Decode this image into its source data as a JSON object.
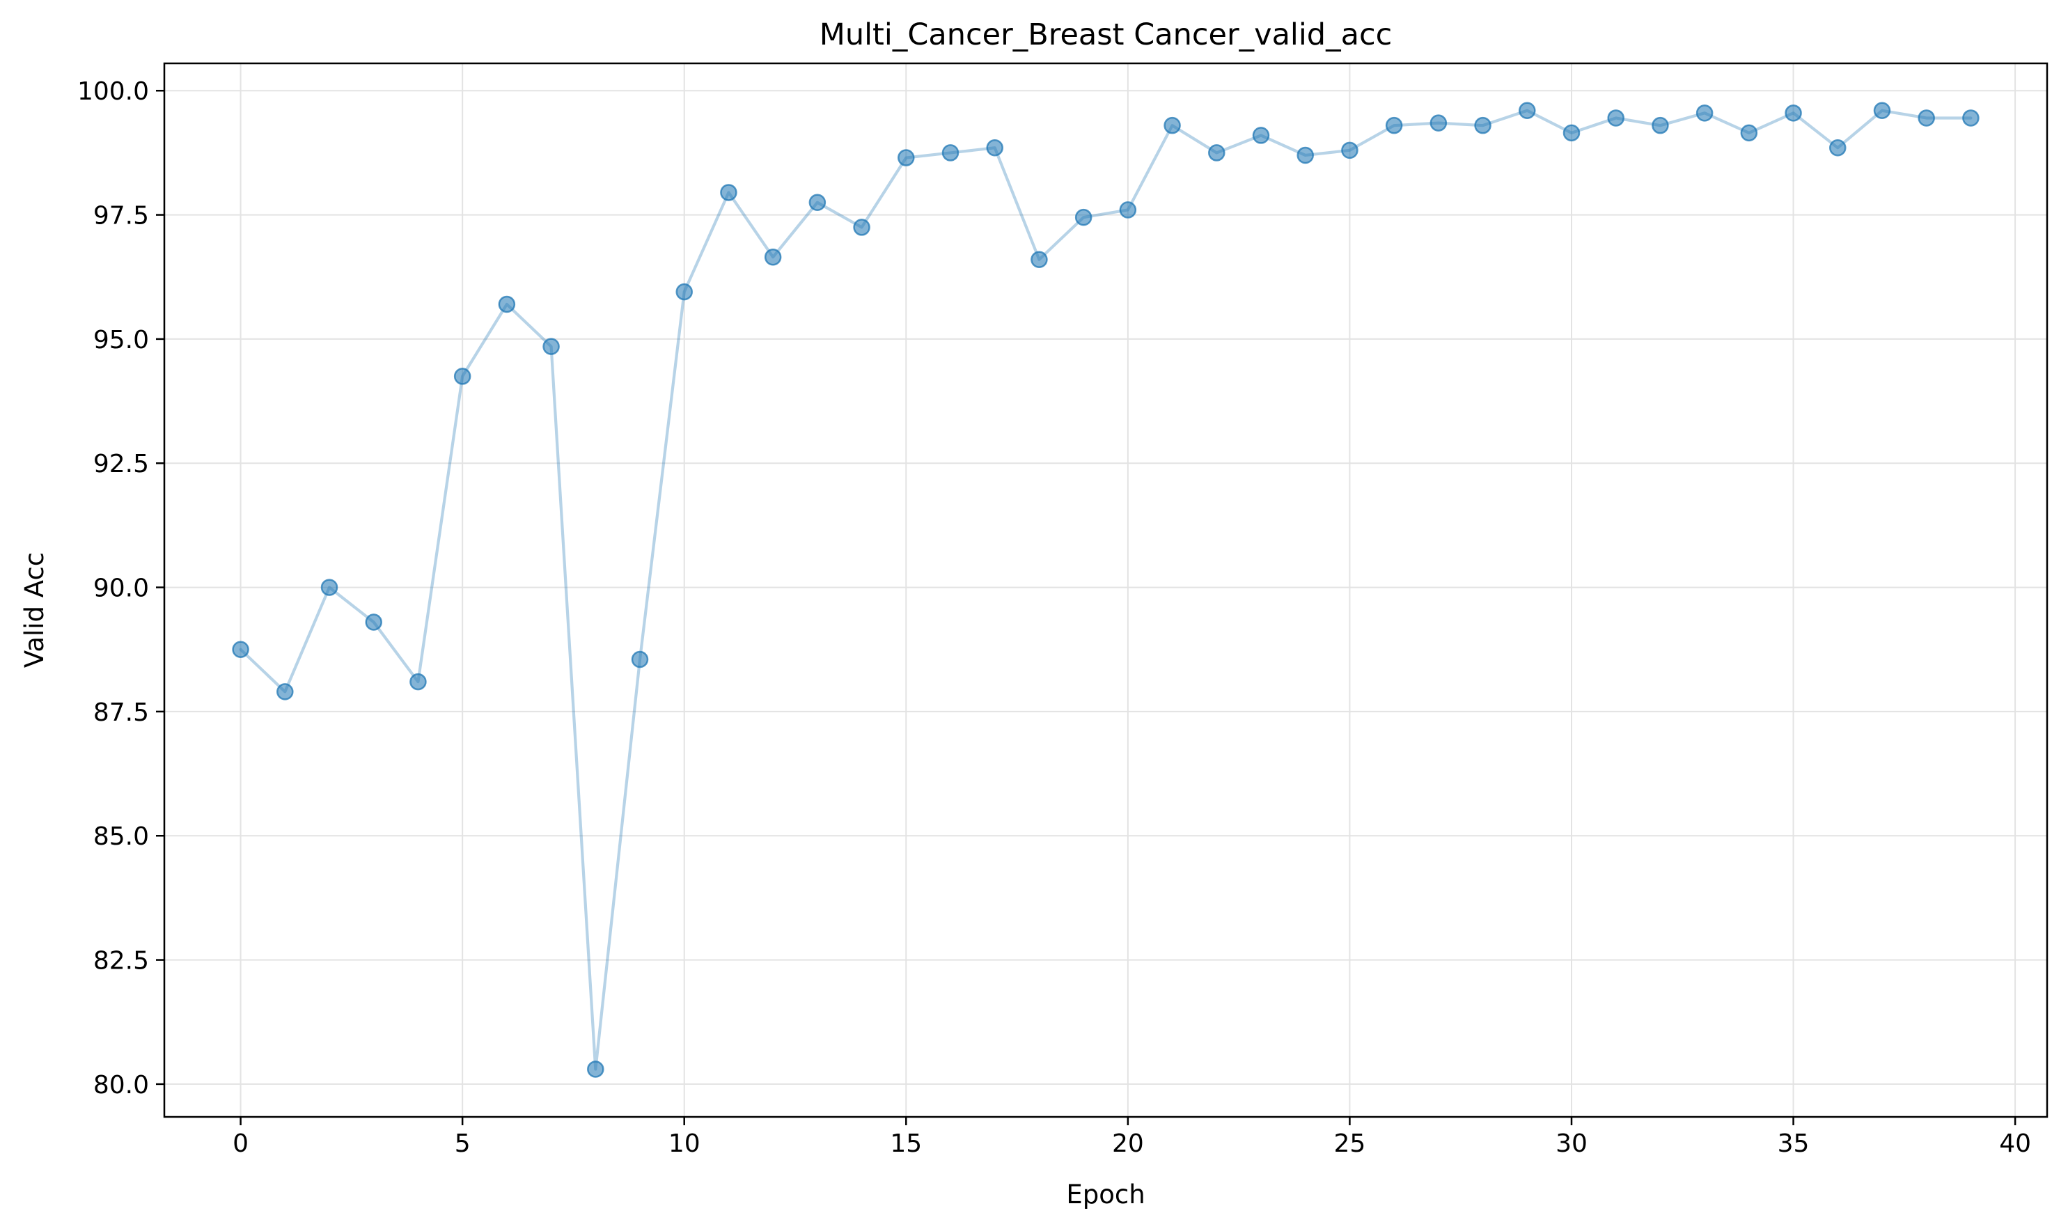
{
  "chart_data": {
    "type": "line",
    "title": "Multi_Cancer_Breast Cancer_valid_acc",
    "xlabel": "Epoch",
    "ylabel": "Valid Acc",
    "xlim": [
      -1.72,
      40.72
    ],
    "ylim": [
      79.34,
      100.55
    ],
    "xticks": [
      0,
      5,
      10,
      15,
      20,
      25,
      30,
      35,
      40
    ],
    "yticks": [
      80.0,
      82.5,
      85.0,
      87.5,
      90.0,
      92.5,
      95.0,
      97.5,
      100.0
    ],
    "xtick_labels": [
      "0",
      "5",
      "10",
      "15",
      "20",
      "25",
      "30",
      "35",
      "40"
    ],
    "ytick_labels": [
      "80.0",
      "82.5",
      "85.0",
      "87.5",
      "90.0",
      "92.5",
      "95.0",
      "97.5",
      "100.0"
    ],
    "grid": true,
    "legend": false,
    "series": [
      {
        "color": "#1f77b4",
        "marker": "circle",
        "x": [
          0,
          1,
          2,
          3,
          4,
          5,
          6,
          7,
          8,
          9,
          10,
          11,
          12,
          13,
          14,
          15,
          16,
          17,
          18,
          19,
          20,
          21,
          22,
          23,
          24,
          25,
          26,
          27,
          28,
          29,
          30,
          31,
          32,
          33,
          34,
          35,
          36,
          37,
          38,
          39
        ],
        "y": [
          88.75,
          87.9,
          90.0,
          89.3,
          88.1,
          94.25,
          95.7,
          94.85,
          80.3,
          88.55,
          95.95,
          97.95,
          96.65,
          97.75,
          97.25,
          98.65,
          98.75,
          98.85,
          96.6,
          97.45,
          97.6,
          99.3,
          98.75,
          99.1,
          98.7,
          98.8,
          99.3,
          99.35,
          99.3,
          99.6,
          99.15,
          99.45,
          99.3,
          99.55,
          99.15,
          99.55,
          98.85,
          99.6,
          99.45,
          99.45
        ]
      }
    ]
  }
}
